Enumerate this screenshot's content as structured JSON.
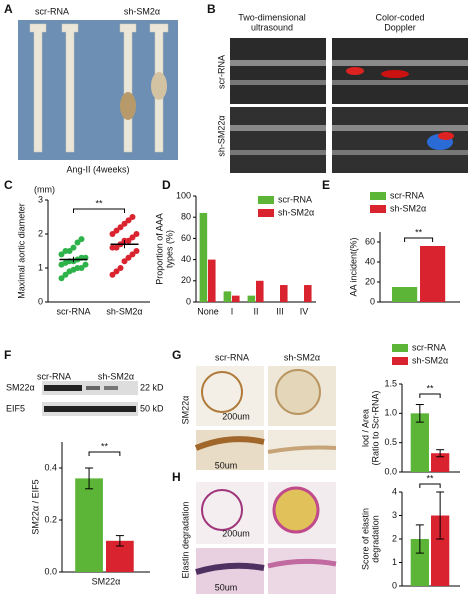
{
  "panel_labels": [
    "A",
    "B",
    "C",
    "D",
    "E",
    "F",
    "G",
    "H"
  ],
  "panel_a": {
    "groups": [
      "scr-RNA",
      "sh-SM2α"
    ],
    "caption": "Ang-II (4weeks)"
  },
  "panel_b": {
    "columns": [
      [
        "Two-dimensional",
        "ultrasound"
      ],
      [
        "Color-coded",
        "Doppler"
      ]
    ],
    "rows": [
      "scr-RNA",
      "sh-SM22α"
    ]
  },
  "panel_f": {
    "groups": [
      "scr-RNA",
      "sh-SM2α"
    ],
    "bands": [
      "SM22α",
      "EIF5"
    ],
    "sizes": [
      "22 kD",
      "50 kD"
    ]
  },
  "panel_g": {
    "columns": [
      "scr-RNA",
      "sh-SM2α"
    ],
    "row_label": "SM22α",
    "scales": [
      "200um",
      "50um"
    ]
  },
  "panel_h": {
    "row_label": "Elastin degradation",
    "scales": [
      "200um",
      "50um"
    ]
  },
  "chart_data": [
    {
      "type": "strip",
      "ylabel": "Maximal aortic diameter",
      "unit": "(mm)",
      "categories": [
        "scr-RNA",
        "sh-SM2α"
      ],
      "series": [
        {
          "color": "#2db34a",
          "values": [
            0.7,
            0.8,
            0.9,
            0.95,
            1.0,
            1.0,
            1.1,
            1.1,
            1.15,
            1.2,
            1.2,
            1.25,
            1.3,
            1.3,
            1.4,
            1.5,
            1.5,
            1.6,
            1.75,
            1.85
          ]
        },
        {
          "color": "#d9232e",
          "values": [
            0.8,
            0.9,
            1.0,
            1.2,
            1.3,
            1.4,
            1.5,
            1.6,
            1.6,
            1.7,
            1.8,
            1.8,
            1.9,
            2.0,
            2.0,
            2.1,
            2.2,
            2.3,
            2.4,
            2.5
          ]
        }
      ],
      "means": [
        1.25,
        1.7
      ],
      "errors": [
        0.08,
        0.12
      ],
      "ylim": [
        0,
        3
      ],
      "yticks": [
        0,
        1,
        2,
        3
      ],
      "annotation": "**"
    },
    {
      "type": "bar",
      "ylabel": [
        "Proportion of AAA",
        "types (%)"
      ],
      "categories": [
        "None",
        "I",
        "II",
        "III",
        "IV"
      ],
      "series": [
        {
          "name": "scr-RNA",
          "color": "#5cb536",
          "values": [
            84,
            10,
            6,
            0,
            0
          ]
        },
        {
          "name": "sh-SM2α",
          "color": "#d9232e",
          "values": [
            40,
            6,
            20,
            16,
            16
          ]
        }
      ],
      "ylim": [
        0,
        100
      ],
      "yticks": [
        0,
        20,
        40,
        60,
        80,
        100
      ],
      "legend": "top-right"
    },
    {
      "type": "bar",
      "ylabel": "AA incident(%)",
      "categories": [
        null
      ],
      "series": [
        {
          "name": "scr-RNA",
          "color": "#5cb536",
          "values": [
            15
          ]
        },
        {
          "name": "sh-SM2α",
          "color": "#d9232e",
          "values": [
            56
          ]
        }
      ],
      "ylim": [
        0,
        70
      ],
      "yticks": [
        0,
        20,
        40,
        60
      ],
      "legend": "top",
      "annotation": "**"
    },
    {
      "type": "bar",
      "ylabel": "SM22α / EIF5",
      "categories": [
        "SM22α"
      ],
      "series": [
        {
          "color": "#5cb536",
          "values": [
            0.36
          ],
          "errors": [
            0.04
          ]
        },
        {
          "color": "#d9232e",
          "values": [
            0.12
          ],
          "errors": [
            0.02
          ]
        }
      ],
      "ylim": [
        0,
        0.5
      ],
      "yticks": [
        {
          "value": 0,
          "label": "0.0"
        },
        0.2,
        0.4
      ],
      "annotation": "**"
    },
    {
      "type": "bar",
      "ylabel": [
        "lod / Area",
        "(Ratio to Scr-RNA)"
      ],
      "categories": [
        null
      ],
      "series": [
        {
          "name": "scr-RNA",
          "color": "#5cb536",
          "values": [
            1.0
          ],
          "errors": [
            0.15
          ]
        },
        {
          "name": "sh-SM2α",
          "color": "#d9232e",
          "values": [
            0.32
          ],
          "errors": [
            0.06
          ]
        }
      ],
      "ylim": [
        0,
        1.5
      ],
      "yticks": [
        {
          "value": 0,
          "label": "0.0"
        },
        0.5,
        {
          "value": 1,
          "label": "1.0"
        },
        1.5
      ],
      "legend": "top",
      "annotation": "**"
    },
    {
      "type": "bar",
      "ylabel": [
        "Score of elastin",
        "degradation"
      ],
      "categories": [
        null
      ],
      "series": [
        {
          "color": "#5cb536",
          "values": [
            2
          ],
          "errors": [
            0.6
          ]
        },
        {
          "color": "#d9232e",
          "values": [
            3
          ],
          "errors": [
            1.0
          ]
        }
      ],
      "ylim": [
        0,
        4
      ],
      "yticks": [
        0,
        1,
        2,
        3,
        4
      ],
      "annotation": "**"
    }
  ]
}
